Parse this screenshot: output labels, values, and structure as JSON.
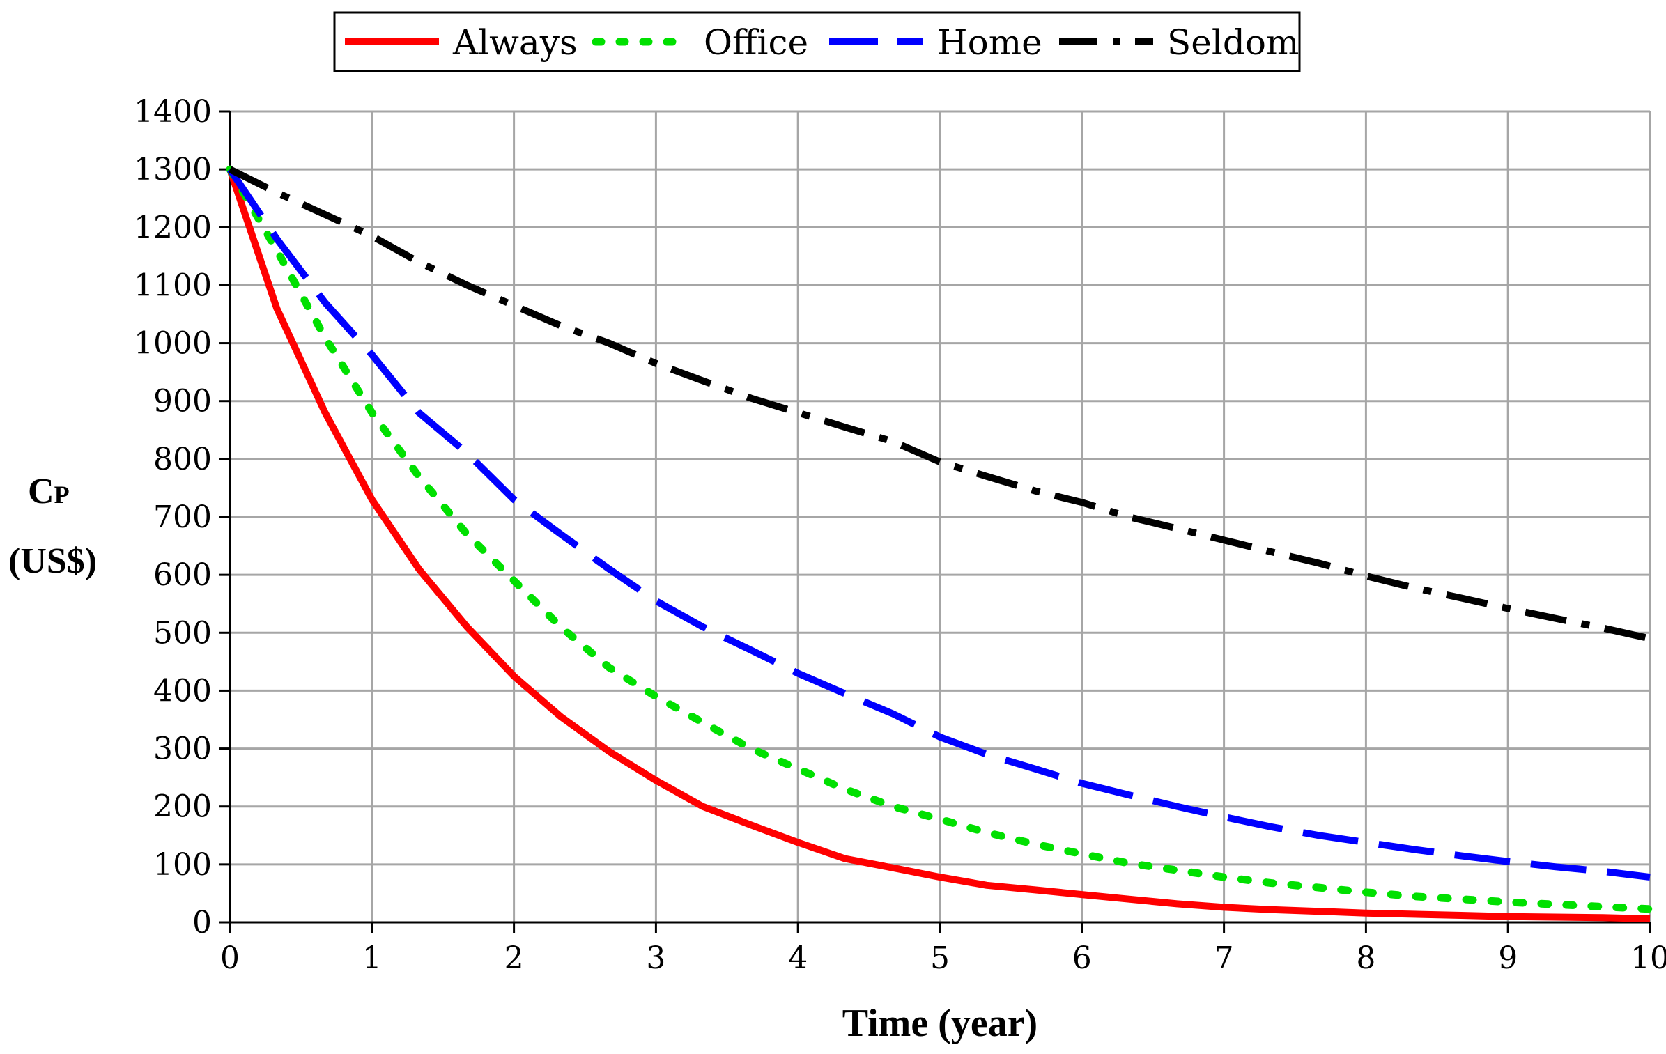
{
  "chart_data": {
    "type": "line",
    "title": "",
    "xlabel": "Time (year)",
    "ylabel_main": "C",
    "ylabel_sub": "P",
    "ylabel_unit": "(US$)",
    "xlim": [
      0,
      10
    ],
    "ylim": [
      0,
      1400
    ],
    "xticks": [
      0,
      1,
      2,
      3,
      4,
      5,
      6,
      7,
      8,
      9,
      10
    ],
    "yticks": [
      0,
      100,
      200,
      300,
      400,
      500,
      600,
      700,
      800,
      900,
      1000,
      1100,
      1200,
      1300,
      1400
    ],
    "grid": true,
    "legend_position": "top-center",
    "series": [
      {
        "name": "Always",
        "color": "#ff0000",
        "style": "solid",
        "x": [
          0,
          0.33,
          0.67,
          1,
          1.33,
          1.67,
          2,
          2.33,
          2.67,
          3,
          3.33,
          3.67,
          4,
          4.33,
          4.67,
          5,
          5.33,
          5.67,
          6,
          6.33,
          6.67,
          7,
          7.33,
          7.67,
          8,
          8.33,
          8.67,
          9,
          9.33,
          9.67,
          10
        ],
        "values": [
          1300,
          1060,
          880,
          730,
          610,
          510,
          425,
          355,
          295,
          245,
          200,
          168,
          138,
          110,
          94,
          78,
          64,
          56,
          48,
          40,
          32,
          26,
          22,
          19,
          16,
          14,
          12,
          10,
          9,
          8,
          6
        ]
      },
      {
        "name": "Office",
        "color": "#00e000",
        "style": "dotted",
        "x": [
          0,
          0.33,
          0.67,
          1,
          1.33,
          1.67,
          2,
          2.33,
          2.67,
          3,
          3.33,
          3.67,
          4,
          4.33,
          4.67,
          5,
          5.33,
          5.67,
          6,
          6.33,
          6.67,
          7,
          7.33,
          7.67,
          8,
          8.33,
          8.67,
          9,
          9.33,
          9.67,
          10
        ],
        "values": [
          1300,
          1160,
          1010,
          880,
          770,
          670,
          590,
          510,
          440,
          390,
          345,
          300,
          265,
          230,
          200,
          178,
          155,
          135,
          118,
          102,
          90,
          78,
          68,
          60,
          52,
          45,
          40,
          35,
          31,
          27,
          23
        ]
      },
      {
        "name": "Home",
        "color": "#0000ff",
        "style": "dashed",
        "x": [
          0,
          0.33,
          0.67,
          1,
          1.33,
          1.67,
          2,
          2.33,
          2.67,
          3,
          3.33,
          3.67,
          4,
          4.33,
          4.67,
          5,
          5.33,
          5.67,
          6,
          6.33,
          6.67,
          7,
          7.33,
          7.67,
          8,
          8.33,
          8.67,
          9,
          9.33,
          9.67,
          10
        ],
        "values": [
          1300,
          1180,
          1070,
          980,
          880,
          810,
          730,
          670,
          610,
          555,
          510,
          470,
          430,
          395,
          360,
          320,
          290,
          265,
          240,
          220,
          200,
          182,
          165,
          150,
          138,
          126,
          115,
          105,
          96,
          88,
          78
        ]
      },
      {
        "name": "Seldom",
        "color": "#000000",
        "style": "dash-dot",
        "x": [
          0,
          0.33,
          0.67,
          1,
          1.33,
          1.67,
          2,
          2.33,
          2.67,
          3,
          3.33,
          3.67,
          4,
          4.33,
          4.67,
          5,
          5.33,
          5.67,
          6,
          6.33,
          6.67,
          7,
          7.33,
          7.67,
          8,
          8.33,
          8.67,
          9,
          9.33,
          9.67,
          10
        ],
        "values": [
          1300,
          1260,
          1222,
          1185,
          1140,
          1100,
          1065,
          1030,
          1000,
          965,
          935,
          905,
          880,
          855,
          830,
          795,
          770,
          745,
          725,
          700,
          680,
          660,
          640,
          620,
          598,
          578,
          560,
          542,
          525,
          508,
          490
        ]
      }
    ]
  }
}
